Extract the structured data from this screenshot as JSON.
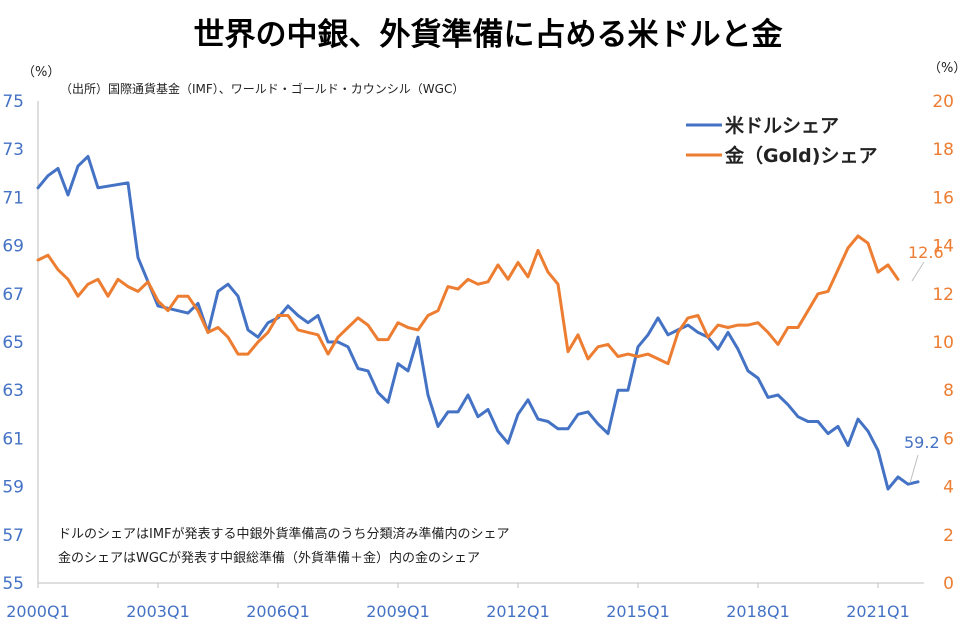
{
  "title": "世界の中銀、外貨準備に占める米ドルと金",
  "source": "（出所）国際通貨基金（IMF）、ワールド・ゴールド・カウンシル（WGC）",
  "colors": {
    "usd": "#4472C4",
    "gold": "#ED7D31"
  },
  "chart_data": {
    "type": "line",
    "title": "世界の中銀、外貨準備に占める米ドルと金",
    "left_axis": {
      "unit": "（%）",
      "range": [
        55,
        75
      ],
      "ticks": [
        "75",
        "73",
        "71",
        "69",
        "67",
        "65",
        "63",
        "61",
        "59",
        "57",
        "55"
      ]
    },
    "right_axis": {
      "unit": "（%）",
      "range": [
        0,
        20
      ],
      "ticks": [
        "20",
        "18",
        "16",
        "14",
        "12",
        "10",
        "8",
        "6",
        "4",
        "2",
        "0"
      ]
    },
    "x_ticks": [
      "2000Q1",
      "2003Q1",
      "2006Q1",
      "2009Q1",
      "2012Q1",
      "2015Q1",
      "2018Q1",
      "2021Q1"
    ],
    "x_range_quarters": [
      0,
      88
    ],
    "legend": {
      "position": "top-right",
      "items": [
        "米ドルシェア",
        "金（Gold)シェア"
      ]
    },
    "notes": [
      "ドルのシェアはIMFが発表する中銀外貨準備高のうち分類済み準備内のシェア",
      "金のシェアはWGCが発表す中銀総準備（外貨準備＋金）内の金のシェア"
    ],
    "end_labels": {
      "usd": "59.2",
      "gold": "12.6"
    },
    "series": [
      {
        "name": "米ドルシェア",
        "axis": "left",
        "points": [
          [
            0,
            71.4
          ],
          [
            1,
            71.9
          ],
          [
            2,
            72.2
          ],
          [
            3,
            71.1
          ],
          [
            4,
            72.3
          ],
          [
            5,
            72.7
          ],
          [
            6,
            71.4
          ],
          [
            9,
            71.6
          ],
          [
            10,
            68.5
          ],
          [
            12,
            66.5
          ],
          [
            15,
            66.2
          ],
          [
            16,
            66.6
          ],
          [
            17,
            65.4
          ],
          [
            18,
            67.1
          ],
          [
            19,
            67.4
          ],
          [
            20,
            66.9
          ],
          [
            21,
            65.5
          ],
          [
            22,
            65.2
          ],
          [
            23,
            65.8
          ],
          [
            24,
            66.0
          ],
          [
            25,
            66.5
          ],
          [
            26,
            66.1
          ],
          [
            27,
            65.8
          ],
          [
            28,
            66.1
          ],
          [
            29,
            65.0
          ],
          [
            30,
            65.0
          ],
          [
            31,
            64.8
          ],
          [
            32,
            63.9
          ],
          [
            33,
            63.8
          ],
          [
            34,
            62.9
          ],
          [
            35,
            62.5
          ],
          [
            36,
            64.1
          ],
          [
            37,
            63.8
          ],
          [
            38,
            65.2
          ],
          [
            39,
            62.8
          ],
          [
            40,
            61.5
          ],
          [
            41,
            62.1
          ],
          [
            42,
            62.1
          ],
          [
            43,
            62.8
          ],
          [
            44,
            61.9
          ],
          [
            45,
            62.2
          ],
          [
            46,
            61.3
          ],
          [
            47,
            60.8
          ],
          [
            48,
            62.0
          ],
          [
            49,
            62.6
          ],
          [
            50,
            61.8
          ],
          [
            51,
            61.7
          ],
          [
            52,
            61.4
          ],
          [
            53,
            61.4
          ],
          [
            54,
            62.0
          ],
          [
            55,
            62.1
          ],
          [
            56,
            61.6
          ],
          [
            57,
            61.2
          ],
          [
            58,
            63.0
          ],
          [
            59,
            63.0
          ],
          [
            60,
            64.8
          ],
          [
            61,
            65.3
          ],
          [
            62,
            66.0
          ],
          [
            63,
            65.3
          ],
          [
            64,
            65.5
          ],
          [
            65,
            65.7
          ],
          [
            66,
            65.4
          ],
          [
            67,
            65.2
          ],
          [
            68,
            64.7
          ],
          [
            69,
            65.4
          ],
          [
            70,
            64.7
          ],
          [
            71,
            63.8
          ],
          [
            72,
            63.5
          ],
          [
            73,
            62.7
          ],
          [
            74,
            62.8
          ],
          [
            75,
            62.4
          ],
          [
            76,
            61.9
          ],
          [
            77,
            61.7
          ],
          [
            78,
            61.7
          ],
          [
            79,
            61.2
          ],
          [
            80,
            61.5
          ],
          [
            81,
            60.7
          ],
          [
            82,
            61.8
          ],
          [
            83,
            61.3
          ],
          [
            84,
            60.5
          ],
          [
            85,
            58.9
          ],
          [
            86,
            59.4
          ],
          [
            87,
            59.1
          ],
          [
            88,
            59.2
          ]
        ]
      },
      {
        "name": "金（Gold)シェア",
        "axis": "right",
        "points": [
          [
            0,
            13.4
          ],
          [
            1,
            13.6
          ],
          [
            2,
            13.0
          ],
          [
            3,
            12.6
          ],
          [
            4,
            11.9
          ],
          [
            5,
            12.4
          ],
          [
            6,
            12.6
          ],
          [
            7,
            11.9
          ],
          [
            8,
            12.6
          ],
          [
            9,
            12.3
          ],
          [
            10,
            12.1
          ],
          [
            11,
            12.5
          ],
          [
            12,
            11.7
          ],
          [
            13,
            11.3
          ],
          [
            14,
            11.9
          ],
          [
            15,
            11.9
          ],
          [
            16,
            11.3
          ],
          [
            17,
            10.4
          ],
          [
            18,
            10.6
          ],
          [
            19,
            10.2
          ],
          [
            20,
            9.5
          ],
          [
            21,
            9.5
          ],
          [
            22,
            10.0
          ],
          [
            23,
            10.4
          ],
          [
            24,
            11.1
          ],
          [
            25,
            11.1
          ],
          [
            26,
            10.5
          ],
          [
            27,
            10.4
          ],
          [
            28,
            10.3
          ],
          [
            29,
            9.5
          ],
          [
            30,
            10.2
          ],
          [
            31,
            10.6
          ],
          [
            32,
            11.0
          ],
          [
            33,
            10.7
          ],
          [
            34,
            10.1
          ],
          [
            35,
            10.1
          ],
          [
            36,
            10.8
          ],
          [
            37,
            10.6
          ],
          [
            38,
            10.5
          ],
          [
            39,
            11.1
          ],
          [
            40,
            11.3
          ],
          [
            41,
            12.3
          ],
          [
            42,
            12.2
          ],
          [
            43,
            12.6
          ],
          [
            44,
            12.4
          ],
          [
            45,
            12.5
          ],
          [
            46,
            13.2
          ],
          [
            47,
            12.6
          ],
          [
            48,
            13.3
          ],
          [
            49,
            12.7
          ],
          [
            50,
            13.8
          ],
          [
            51,
            12.9
          ],
          [
            52,
            12.4
          ],
          [
            53,
            9.6
          ],
          [
            54,
            10.3
          ],
          [
            55,
            9.3
          ],
          [
            56,
            9.8
          ],
          [
            57,
            9.9
          ],
          [
            58,
            9.4
          ],
          [
            59,
            9.5
          ],
          [
            60,
            9.4
          ],
          [
            61,
            9.5
          ],
          [
            62,
            9.3
          ],
          [
            63,
            9.1
          ],
          [
            64,
            10.4
          ],
          [
            65,
            11.0
          ],
          [
            66,
            11.1
          ],
          [
            67,
            10.2
          ],
          [
            68,
            10.7
          ],
          [
            69,
            10.6
          ],
          [
            70,
            10.7
          ],
          [
            71,
            10.7
          ],
          [
            72,
            10.8
          ],
          [
            73,
            10.4
          ],
          [
            74,
            9.9
          ],
          [
            75,
            10.6
          ],
          [
            76,
            10.6
          ],
          [
            77,
            11.3
          ],
          [
            78,
            12.0
          ],
          [
            79,
            12.1
          ],
          [
            80,
            13.0
          ],
          [
            81,
            13.9
          ],
          [
            82,
            14.4
          ],
          [
            83,
            14.1
          ],
          [
            84,
            12.9
          ],
          [
            85,
            13.2
          ],
          [
            86,
            12.6
          ]
        ]
      }
    ]
  }
}
